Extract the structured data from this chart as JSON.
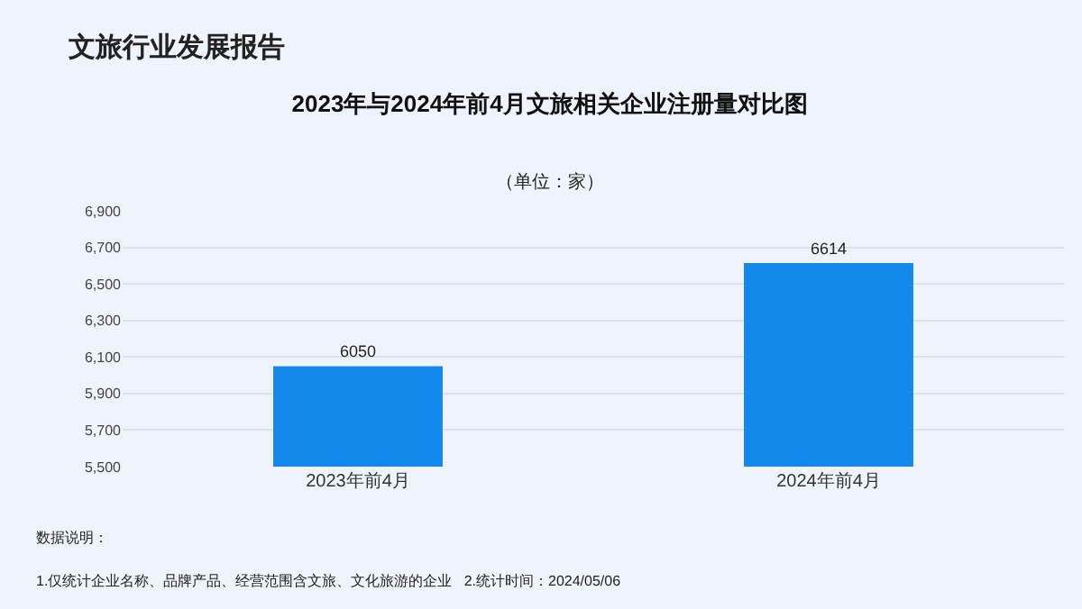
{
  "chart_data": {
    "type": "bar",
    "title": "2023年与2024年前4月文旅相关企业注册量对比图",
    "subtitle": "（单位：家）",
    "categories": [
      "2023年前4月",
      "2024年前4月"
    ],
    "values": [
      6050,
      6614
    ],
    "color": "#1389eb",
    "data_labels": true,
    "ylim": [
      5500,
      6900
    ],
    "yticks": [
      {
        "value": 5500,
        "label": "5,500"
      },
      {
        "value": 5700,
        "label": "5,700"
      },
      {
        "value": 5900,
        "label": "5,900"
      },
      {
        "value": 6100,
        "label": "6,100"
      },
      {
        "value": 6300,
        "label": "6,300"
      },
      {
        "value": 6500,
        "label": "6,500"
      },
      {
        "value": 6700,
        "label": "6,700"
      },
      {
        "value": 6900,
        "label": "6,900"
      }
    ],
    "grid": "y",
    "annotations": [
      "文旅行业发展报告",
      "数据说明：",
      "1.仅统计企业名称、品牌产品、经营范围含文旅、文化旅游的企业   2.统计时间：2024/05/06"
    ]
  }
}
